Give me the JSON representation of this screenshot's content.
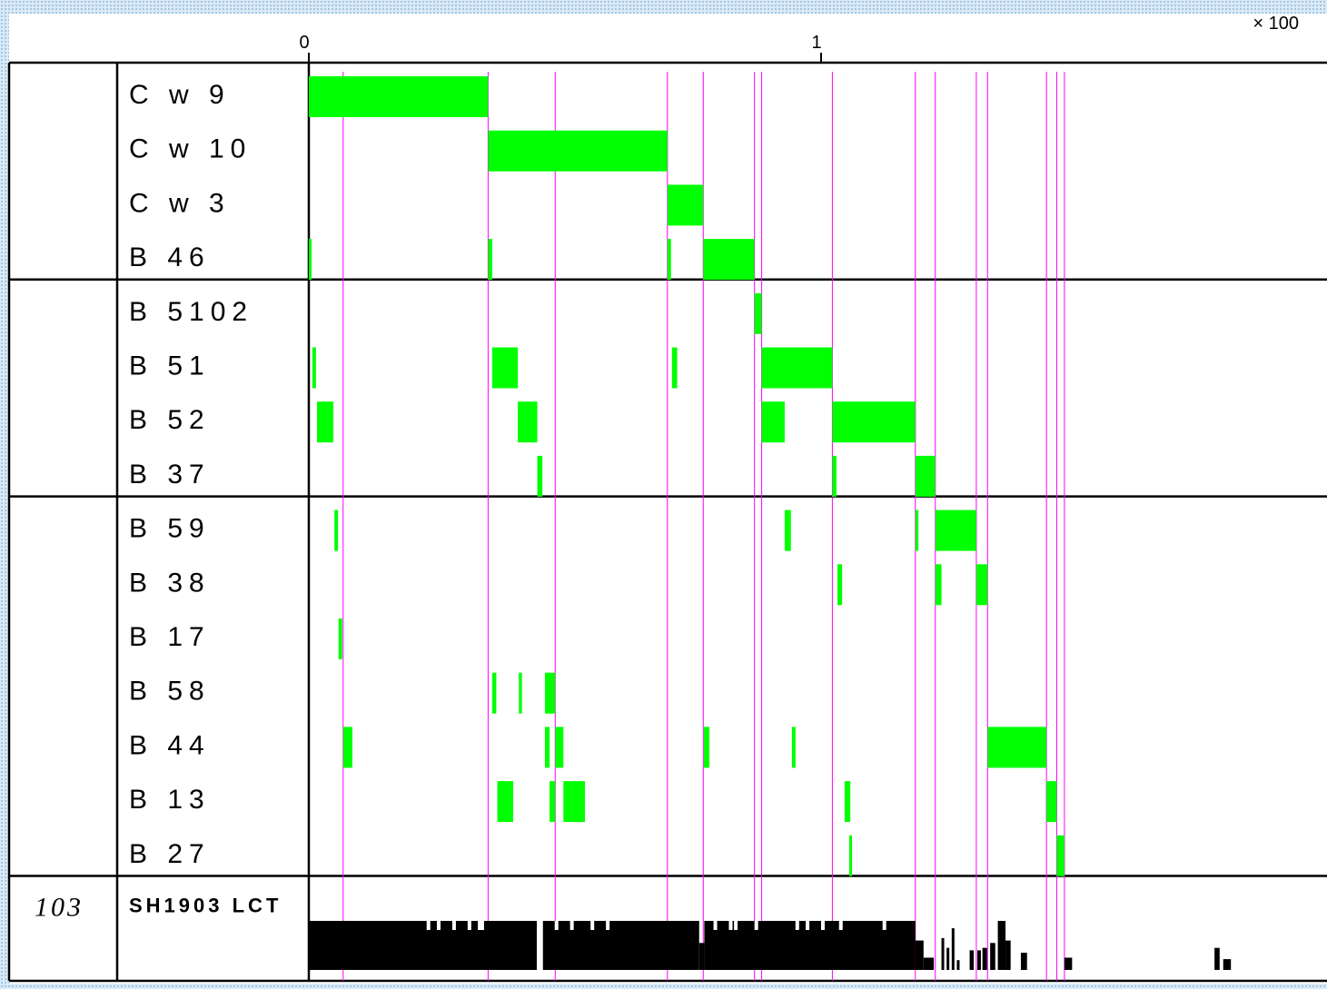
{
  "chart_data": {
    "type": "bar",
    "scale_label": "× 100",
    "x_ticks": [
      "0",
      "1"
    ],
    "colors": {
      "bar": "#00ff00",
      "link": "#ff00ff",
      "footer_bar": "#000000",
      "grid": "#000000"
    },
    "groups": [
      {
        "rows": [
          "C w 9",
          "C w 10",
          "C w 3",
          "B 46"
        ]
      },
      {
        "rows": [
          "B 5102",
          "B 51",
          "B 52",
          "B 37"
        ]
      },
      {
        "rows": [
          "B 59",
          "B 38",
          "B 17",
          "B 58",
          "B 44",
          "B 13",
          "B 27"
        ]
      }
    ],
    "series": [
      {
        "name": "C w 9",
        "segments": [
          [
            0,
            0.35
          ]
        ]
      },
      {
        "name": "C w 10",
        "segments": [
          [
            0.35,
            0.7
          ]
        ]
      },
      {
        "name": "C w 3",
        "segments": [
          [
            0.7,
            0.77
          ]
        ]
      },
      {
        "name": "B 46",
        "segments": [
          [
            0.0,
            0.005
          ],
          [
            0.35,
            0.358
          ],
          [
            0.7,
            0.707
          ],
          [
            0.77,
            0.87
          ]
        ]
      },
      {
        "name": "B 5102",
        "segments": [
          [
            0.87,
            0.884
          ]
        ]
      },
      {
        "name": "B 51",
        "segments": [
          [
            0.007,
            0.014
          ],
          [
            0.358,
            0.408
          ],
          [
            0.709,
            0.719
          ],
          [
            0.884,
            1.022
          ]
        ]
      },
      {
        "name": "B 52",
        "segments": [
          [
            0.016,
            0.048
          ],
          [
            0.408,
            0.446
          ],
          [
            0.884,
            0.929
          ],
          [
            1.022,
            1.184
          ]
        ]
      },
      {
        "name": "B 37",
        "segments": [
          [
            0.446,
            0.456
          ],
          [
            1.022,
            1.03
          ],
          [
            1.184,
            1.223
          ]
        ]
      },
      {
        "name": "B 59",
        "segments": [
          [
            0.05,
            0.057
          ],
          [
            0.929,
            0.941
          ],
          [
            1.184,
            1.19
          ],
          [
            1.223,
            1.303
          ]
        ]
      },
      {
        "name": "B 38",
        "segments": [
          [
            1.032,
            1.041
          ],
          [
            1.223,
            1.235
          ],
          [
            1.303,
            1.325
          ]
        ]
      },
      {
        "name": "B 17",
        "segments": [
          [
            0.058,
            0.065
          ]
        ]
      },
      {
        "name": "B 58",
        "segments": [
          [
            0.358,
            0.366
          ],
          [
            0.41,
            0.416
          ],
          [
            0.461,
            0.481
          ]
        ]
      },
      {
        "name": "B 44",
        "segments": [
          [
            0.067,
            0.085
          ],
          [
            0.461,
            0.47
          ],
          [
            0.481,
            0.497
          ],
          [
            0.771,
            0.782
          ],
          [
            0.943,
            0.95
          ],
          [
            1.325,
            1.44
          ]
        ]
      },
      {
        "name": "B 13",
        "segments": [
          [
            0.368,
            0.399
          ],
          [
            0.47,
            0.481
          ],
          [
            0.497,
            0.539
          ],
          [
            1.046,
            1.057
          ],
          [
            1.44,
            1.46
          ]
        ]
      },
      {
        "name": "B 27",
        "segments": [
          [
            1.055,
            1.06
          ],
          [
            1.46,
            1.475
          ]
        ]
      }
    ],
    "links": [
      0.067,
      0.35,
      0.481,
      0.7,
      0.77,
      0.87,
      0.884,
      1.022,
      1.184,
      1.223,
      1.303,
      1.325,
      1.44,
      1.46,
      1.475
    ],
    "footer": {
      "number": "103",
      "label": "SH1903 LCT",
      "profile": [
        [
          0.0,
          0.445,
          1.0
        ],
        [
          0.457,
          0.762,
          1.0
        ],
        [
          0.762,
          0.772,
          0.55
        ],
        [
          0.772,
          1.184,
          1.0
        ],
        [
          1.184,
          1.2,
          0.6
        ],
        [
          1.2,
          1.22,
          0.25
        ],
        [
          1.235,
          1.24,
          0.65
        ],
        [
          1.245,
          1.25,
          0.45
        ],
        [
          1.255,
          1.26,
          0.85
        ],
        [
          1.265,
          1.27,
          0.2
        ],
        [
          1.29,
          1.298,
          0.4
        ],
        [
          1.305,
          1.312,
          0.4
        ],
        [
          1.315,
          1.324,
          0.45
        ],
        [
          1.33,
          1.34,
          0.55
        ],
        [
          1.345,
          1.36,
          1.0
        ],
        [
          1.36,
          1.37,
          0.6
        ],
        [
          1.39,
          1.402,
          0.35
        ],
        [
          1.475,
          1.49,
          0.25
        ],
        [
          1.768,
          1.778,
          0.45
        ],
        [
          1.785,
          1.8,
          0.22
        ]
      ],
      "notches": [
        0.23,
        0.25,
        0.28,
        0.31,
        0.33,
        0.335,
        0.48,
        0.51,
        0.55,
        0.58,
        0.79,
        0.82,
        0.83,
        0.87,
        0.95,
        0.97,
        1.0,
        1.035,
        1.12
      ]
    }
  }
}
